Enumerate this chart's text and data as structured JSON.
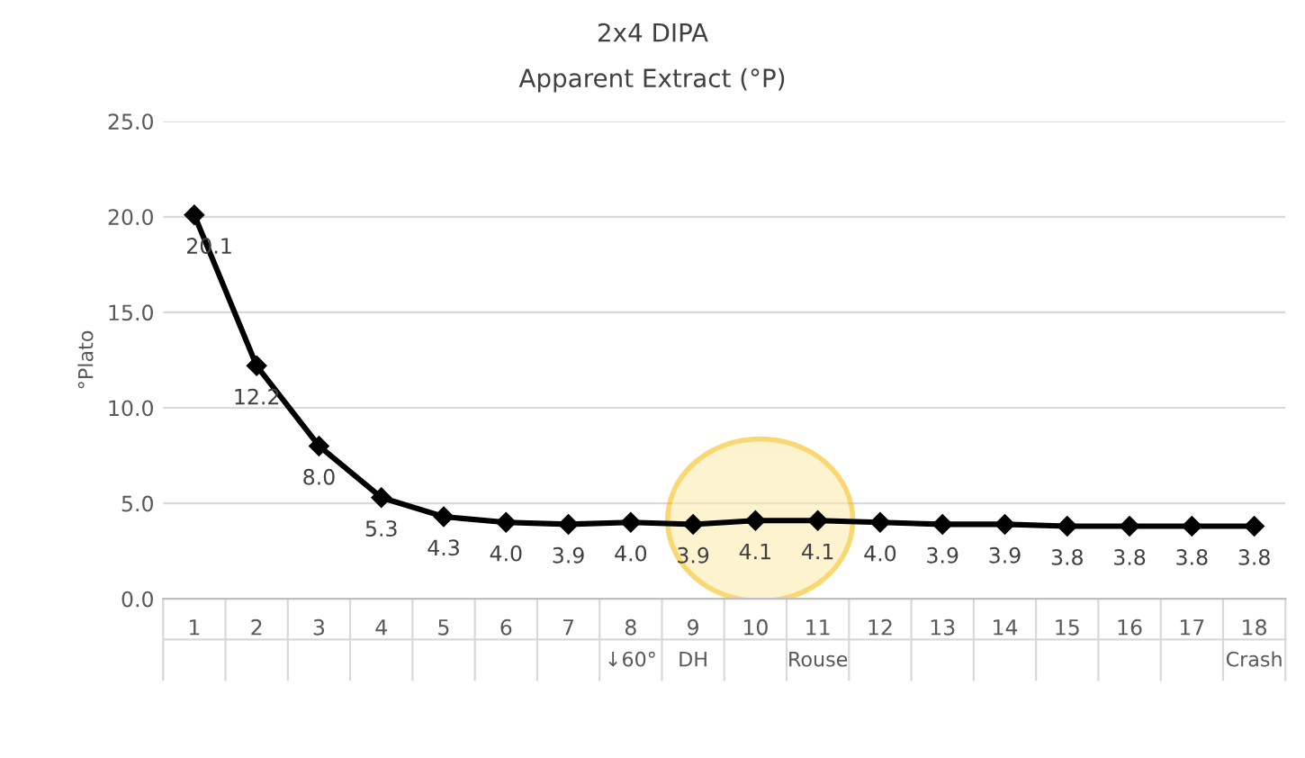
{
  "chart_data": {
    "type": "line",
    "title": "2x4 DIPA",
    "subtitle": "Apparent Extract (°P)",
    "ylabel": "°Plato",
    "categories": [
      "1",
      "2",
      "3",
      "4",
      "5",
      "6",
      "7",
      "8\n↓60°",
      "9\nDH",
      "10",
      "11\nRouse",
      "12",
      "13",
      "14",
      "15",
      "16",
      "17",
      "18\nCrash"
    ],
    "series": [
      {
        "color": "#000000",
        "values": [
          20.1,
          12.2,
          8.0,
          5.3,
          4.3,
          4.0,
          3.9,
          4.0,
          3.9,
          4.1,
          4.1,
          4.0,
          3.9,
          3.9,
          3.8,
          3.8,
          3.8,
          3.8
        ]
      }
    ],
    "value_labels": [
      "20.1",
      "12.2",
      "8.0",
      "5.3",
      "4.3",
      "4.0",
      "3.9",
      "4.0",
      "3.9",
      "4.1",
      "4.1",
      "4.0",
      "3.9",
      "3.9",
      "3.8",
      "3.8",
      "3.8",
      "3.8"
    ],
    "ylim": [
      0,
      25
    ],
    "yticks": [
      {
        "value": 0,
        "label": "0.0"
      },
      {
        "value": 5,
        "label": "5.0"
      },
      {
        "value": 10,
        "label": "10.0"
      },
      {
        "value": 15,
        "label": "15.0"
      },
      {
        "value": 20,
        "label": "20.0"
      },
      {
        "value": 25,
        "label": "25.0"
      }
    ],
    "grid": "y",
    "marker": "diamond",
    "line_style": "solid"
  }
}
